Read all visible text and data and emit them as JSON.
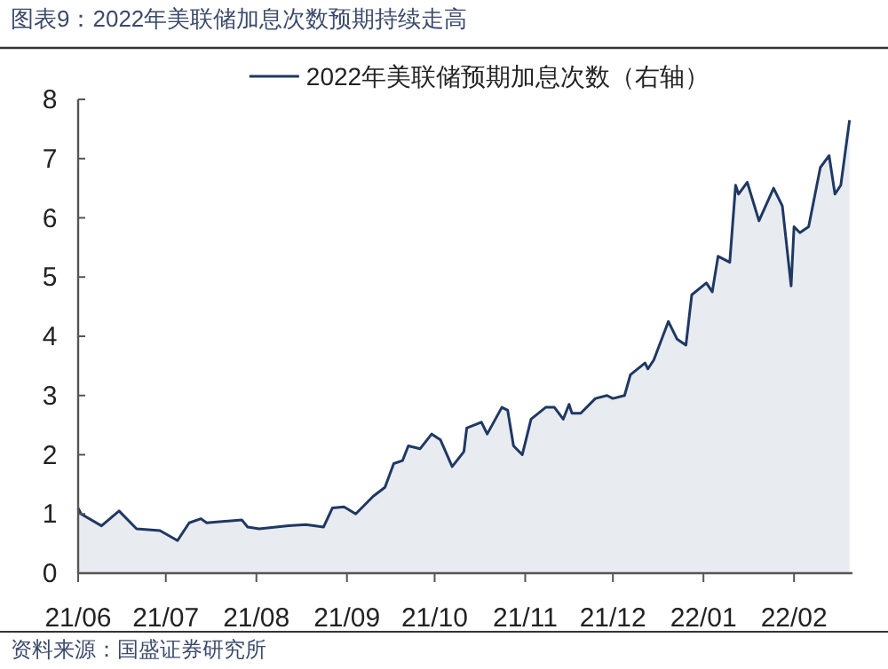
{
  "chart_data": {
    "type": "area",
    "title": "图表9：2022年美联储加息次数预期持续走高",
    "annotations": [
      "资料来源：国盛证券研究所"
    ],
    "x": [
      "2021-06-01",
      "2021-06-02",
      "2021-06-09",
      "2021-06-15",
      "2021-06-21",
      "2021-06-29",
      "2021-07-05",
      "2021-07-09",
      "2021-07-13",
      "2021-07-15",
      "2021-07-27",
      "2021-07-29",
      "2021-08-02",
      "2021-08-12",
      "2021-08-18",
      "2021-08-24",
      "2021-08-27",
      "2021-08-31",
      "2021-09-04",
      "2021-09-10",
      "2021-09-14",
      "2021-09-17",
      "2021-09-20",
      "2021-09-22",
      "2021-09-26",
      "2021-09-30",
      "2021-10-03",
      "2021-10-07",
      "2021-10-11",
      "2021-10-12",
      "2021-10-17",
      "2021-10-19",
      "2021-10-24",
      "2021-10-26",
      "2021-10-28",
      "2021-10-31",
      "2021-11-03",
      "2021-11-08",
      "2021-11-11",
      "2021-11-14",
      "2021-11-16",
      "2021-11-17",
      "2021-11-20",
      "2021-11-25",
      "2021-11-29",
      "2021-12-01",
      "2021-12-05",
      "2021-12-07",
      "2021-12-12",
      "2021-12-13",
      "2021-12-15",
      "2021-12-20",
      "2021-12-23",
      "2021-12-26",
      "2021-12-28",
      "2022-01-02",
      "2022-01-04",
      "2022-01-06",
      "2022-01-10",
      "2022-01-12",
      "2022-01-13",
      "2022-01-16",
      "2022-01-20",
      "2022-01-25",
      "2022-01-28",
      "2022-01-31",
      "2022-02-01",
      "2022-02-03",
      "2022-02-06",
      "2022-02-10",
      "2022-02-13",
      "2022-02-15",
      "2022-02-17",
      "2022-02-20"
    ],
    "series": [
      {
        "name": "2022年美联储预期加息次数（右轴）",
        "color": "#1f3864",
        "values": [
          1.1,
          1.0,
          0.8,
          1.05,
          0.75,
          0.72,
          0.55,
          0.85,
          0.92,
          0.85,
          0.9,
          0.78,
          0.75,
          0.8,
          0.82,
          0.78,
          1.1,
          1.12,
          1.0,
          1.3,
          1.45,
          1.85,
          1.9,
          2.15,
          2.1,
          2.35,
          2.25,
          1.8,
          2.05,
          2.45,
          2.55,
          2.35,
          2.8,
          2.75,
          2.15,
          2.0,
          2.6,
          2.8,
          2.8,
          2.6,
          2.85,
          2.7,
          2.7,
          2.95,
          3.0,
          2.95,
          3.0,
          3.35,
          3.55,
          3.45,
          3.6,
          4.25,
          3.95,
          3.85,
          4.7,
          4.9,
          4.75,
          5.35,
          5.25,
          6.55,
          6.4,
          6.6,
          5.95,
          6.5,
          6.2,
          4.85,
          5.85,
          5.75,
          5.85,
          6.85,
          7.05,
          6.4,
          6.55,
          7.65
        ]
      }
    ],
    "xlim": [
      "2021-06-01",
      "2022-02-21"
    ],
    "xticks": [
      {
        "value": "2021-06-01",
        "label": "21/06"
      },
      {
        "value": "2021-07-01",
        "label": "21/07"
      },
      {
        "value": "2021-08-01",
        "label": "21/08"
      },
      {
        "value": "2021-09-01",
        "label": "21/09"
      },
      {
        "value": "2021-10-01",
        "label": "21/10"
      },
      {
        "value": "2021-11-01",
        "label": "21/11"
      },
      {
        "value": "2021-12-01",
        "label": "21/12"
      },
      {
        "value": "2022-01-01",
        "label": "22/01"
      },
      {
        "value": "2022-02-01",
        "label": "22/02"
      }
    ],
    "ylim": [
      0,
      8
    ],
    "yticks": [
      0,
      1,
      2,
      3,
      4,
      5,
      6,
      7,
      8
    ],
    "legend": "top",
    "grid": false
  }
}
